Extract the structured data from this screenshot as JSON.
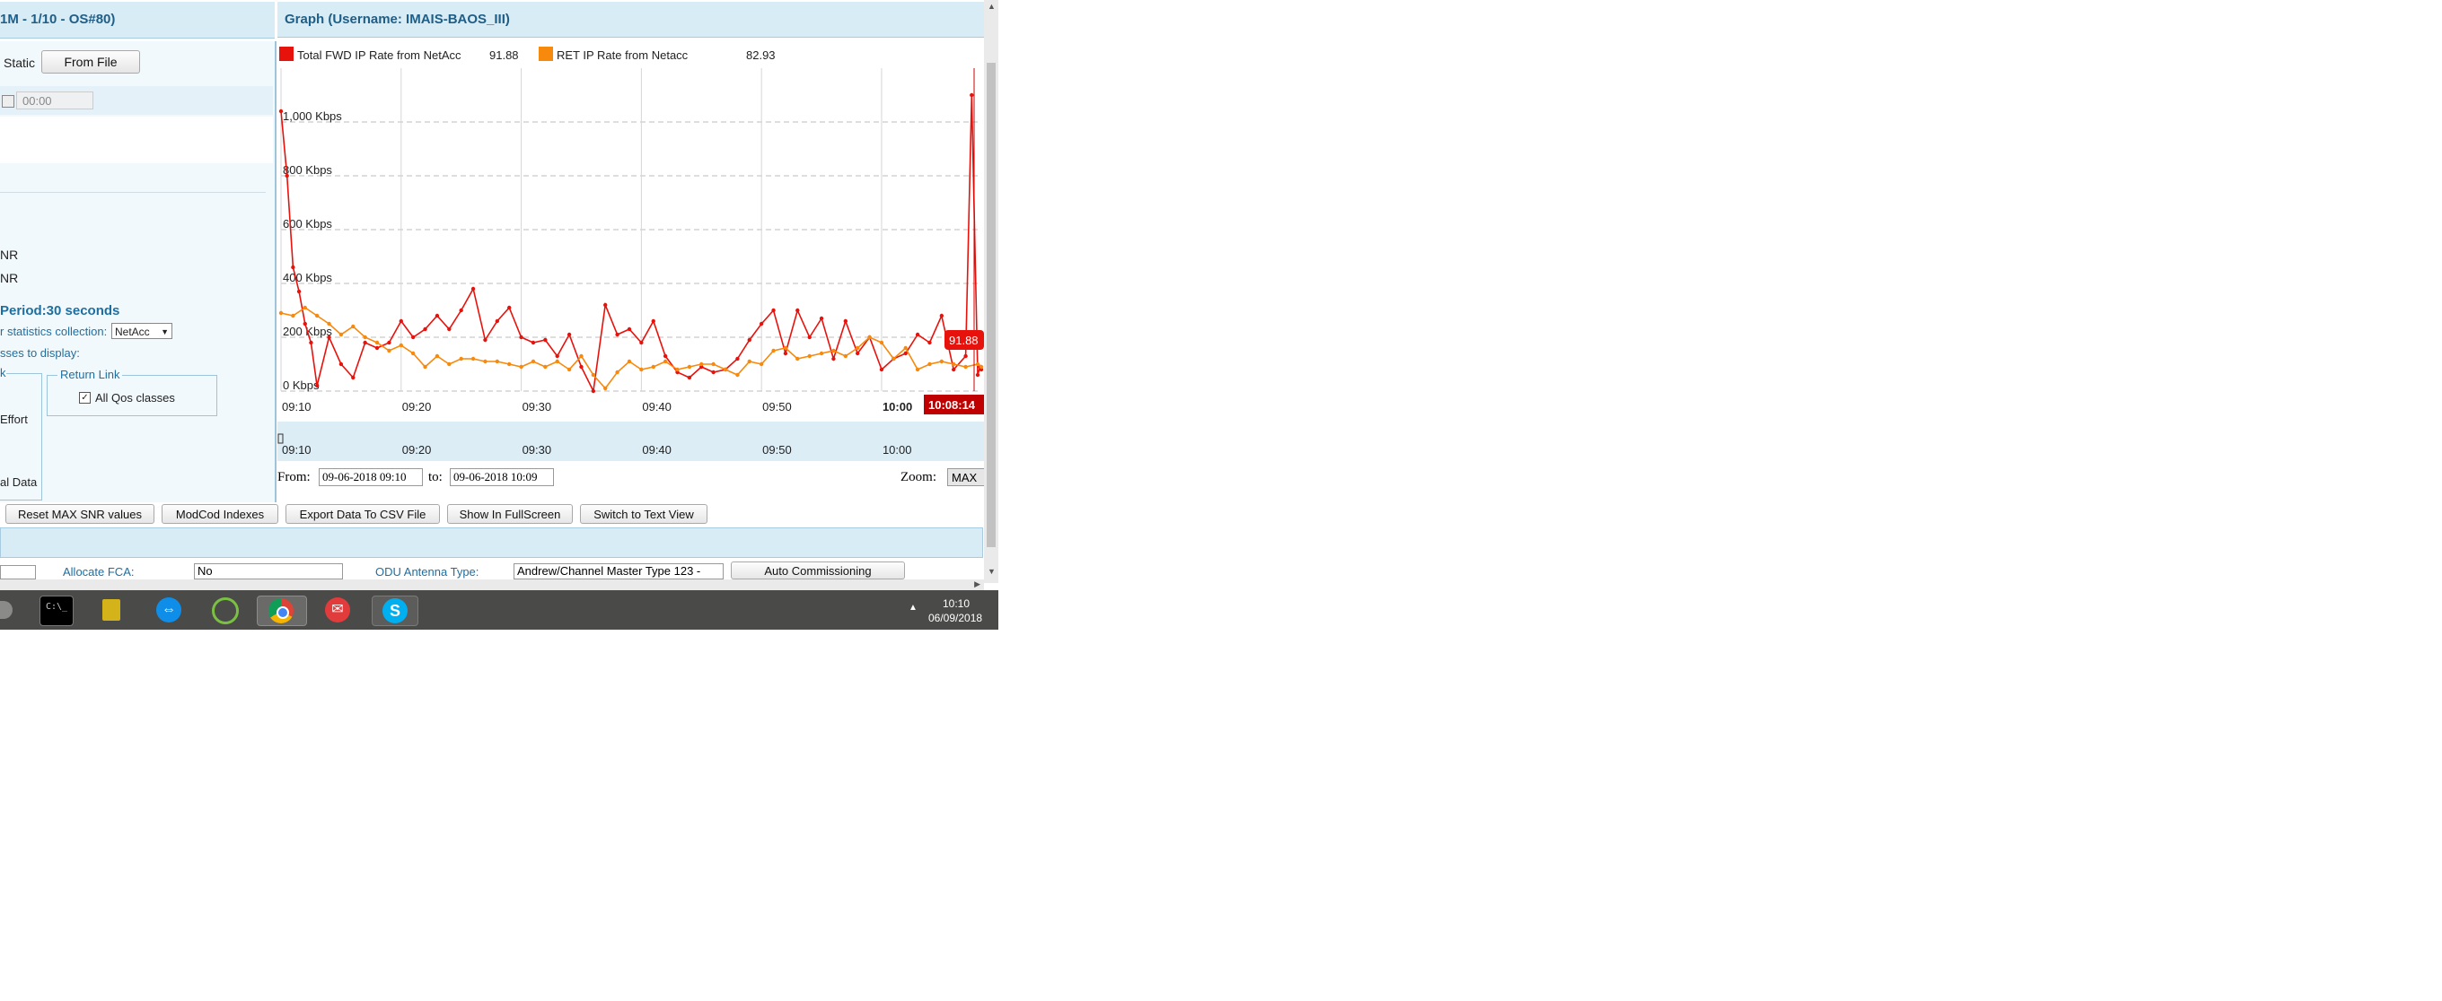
{
  "left_header": {
    "title": "1M - 1/10 - OS#80)"
  },
  "graph_header": {
    "title": "Graph (Username: IMAIS-BAOS_III)"
  },
  "left_panel": {
    "static_label": "Static",
    "from_file_label": "From File",
    "time_value": "00:00",
    "snr_line1": "NR",
    "snr_line2": "NR",
    "period_label": "Period:30 seconds",
    "stats_label": "r statistics collection:",
    "stats_value": "NetAcc",
    "classes_label": "sses to display:",
    "group_left_title": "k",
    "group_left_item": "Effort",
    "return_link_title": "Return Link",
    "return_link_checkbox": "All Qos classes",
    "total_data_label": "al Data"
  },
  "legend": [
    {
      "name": "Total FWD IP Rate from NetAcc",
      "value": "91.88",
      "color": "#e8120c"
    },
    {
      "name": "RET IP Rate from Netacc",
      "value": "82.93",
      "color": "#f7890c"
    }
  ],
  "range": {
    "from_label": "From:",
    "from_value": "09-06-2018 09:10",
    "to_label": "to:",
    "to_value": "09-06-2018 10:09",
    "zoom_label": "Zoom:",
    "zoom_value": "MAX"
  },
  "chart_data": {
    "type": "line",
    "y_unit": "Kbps",
    "y_ticks": [
      "0 Kbps",
      "200 Kbps",
      "400 Kbps",
      "600 Kbps",
      "800 Kbps",
      "1,000 Kbps"
    ],
    "x_ticks": [
      "09:10",
      "09:20",
      "09:30",
      "09:40",
      "09:50",
      "10:00"
    ],
    "x_tick_minutes": [
      10,
      20,
      30,
      40,
      50,
      60
    ],
    "overview_ticks": [
      "09:10",
      "09:20",
      "09:30",
      "09:40",
      "09:50",
      "10:00"
    ],
    "xlim_minutes": [
      10,
      68.3
    ],
    "ylim": [
      0,
      1200
    ],
    "grid": true,
    "legend_placement": "top-left",
    "cursor_time": "10:08:14",
    "cursor_value": "91.88",
    "series": [
      {
        "name": "Total FWD IP Rate from NetAcc",
        "color": "#e8120c",
        "x": [
          10,
          10.5,
          11,
          11.5,
          12,
          12.5,
          13,
          14,
          15,
          16,
          17,
          18,
          19,
          20,
          21,
          22,
          23,
          24,
          25,
          26,
          27,
          28,
          29,
          30,
          31,
          32,
          33,
          34,
          35,
          36,
          37,
          38,
          39,
          40,
          41,
          42,
          43,
          44,
          45,
          46,
          47,
          48,
          49,
          50,
          51,
          52,
          53,
          54,
          55,
          56,
          57,
          58,
          59,
          60,
          61,
          62,
          63,
          64,
          65,
          66,
          67,
          67.5,
          68,
          68.2,
          68.3
        ],
        "y": [
          1040,
          800,
          460,
          370,
          250,
          180,
          20,
          200,
          100,
          50,
          180,
          160,
          180,
          260,
          200,
          230,
          280,
          230,
          300,
          380,
          190,
          260,
          310,
          200,
          180,
          190,
          130,
          210,
          90,
          0,
          320,
          210,
          230,
          180,
          260,
          130,
          70,
          50,
          90,
          70,
          80,
          120,
          190,
          250,
          300,
          140,
          300,
          200,
          270,
          120,
          260,
          140,
          200,
          80,
          120,
          140,
          210,
          180,
          280,
          80,
          130,
          1100,
          60,
          90,
          80
        ]
      },
      {
        "name": "RET IP Rate from Netacc",
        "color": "#f7890c",
        "x": [
          10,
          11,
          12,
          13,
          14,
          15,
          16,
          17,
          18,
          19,
          20,
          21,
          22,
          23,
          24,
          25,
          26,
          27,
          28,
          29,
          30,
          31,
          32,
          33,
          34,
          35,
          36,
          37,
          38,
          39,
          40,
          41,
          42,
          43,
          44,
          45,
          46,
          47,
          48,
          49,
          50,
          51,
          52,
          53,
          54,
          55,
          56,
          57,
          58,
          59,
          60,
          61,
          62,
          63,
          64,
          65,
          66,
          67,
          68,
          68.3
        ],
        "y": [
          290,
          280,
          310,
          280,
          250,
          210,
          240,
          200,
          180,
          150,
          170,
          140,
          90,
          130,
          100,
          120,
          120,
          110,
          110,
          100,
          90,
          110,
          90,
          110,
          80,
          130,
          60,
          10,
          70,
          110,
          80,
          90,
          110,
          80,
          90,
          100,
          100,
          80,
          60,
          110,
          100,
          150,
          160,
          120,
          130,
          140,
          150,
          130,
          160,
          200,
          180,
          120,
          160,
          80,
          100,
          110,
          100,
          90,
          100,
          90
        ]
      }
    ]
  },
  "buttons": {
    "reset": "Reset MAX SNR values",
    "modcod": "ModCod Indexes",
    "export": "Export Data To CSV File",
    "fullscreen": "Show In FullScreen",
    "textview": "Switch to Text View"
  },
  "bottom_row": {
    "allocate_label": "Allocate FCA:",
    "allocate_value": "No",
    "odu_label": "ODU Antenna Type:",
    "odu_value": "Andrew/Channel Master Type 123 -",
    "auto_button": "Auto Commissioning"
  },
  "taskbar": {
    "time": "10:10",
    "date": "06/09/2018",
    "icons": [
      "terminal-icon",
      "folder-lock-icon",
      "teamviewer-icon",
      "refresh-app-icon",
      "chrome-icon",
      "mail-icon",
      "skype-icon"
    ]
  }
}
